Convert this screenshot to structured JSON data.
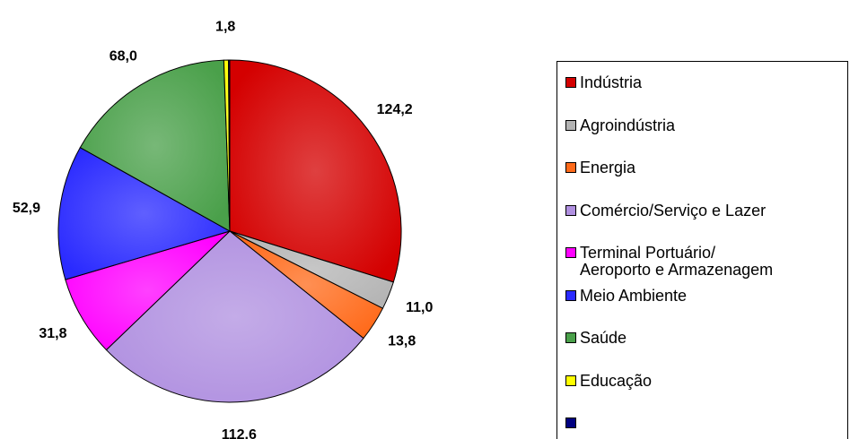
{
  "chart_data": {
    "type": "pie",
    "categories": [
      "Indústria",
      "Agroindústria",
      "Energia",
      "Comércio/Serviço e Lazer",
      "Terminal Portuário/\nAeroporto e Armazenagem",
      "Meio Ambiente",
      "Saúde",
      "Educação",
      null
    ],
    "values": [
      124.2,
      11.0,
      13.8,
      112.6,
      31.8,
      52.9,
      68.0,
      1.8,
      0.5
    ],
    "value_labels": [
      "124,2",
      "11,0",
      "13,8",
      "112,6",
      "31,8",
      "52,9",
      "68,0",
      "1,8",
      null
    ],
    "colors": [
      "#d40000",
      "#b4b4b4",
      "#ff6a1a",
      "#b090e0",
      "#ff00ff",
      "#2a2aff",
      "#4aa04a",
      "#ffff00",
      "#000080"
    ]
  }
}
